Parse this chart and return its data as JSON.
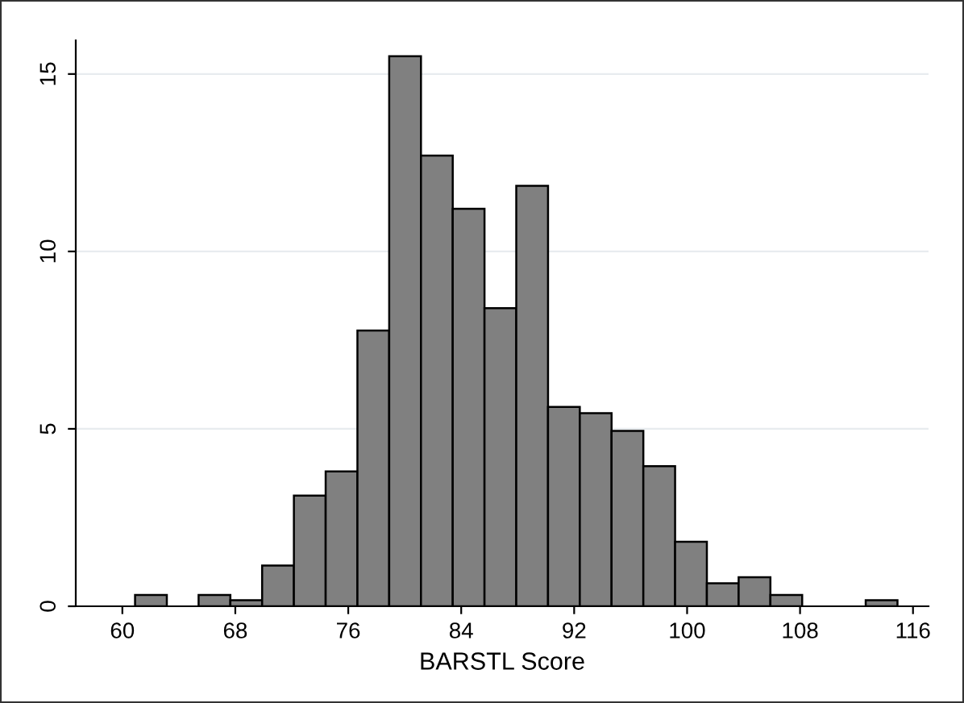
{
  "chart_data": {
    "type": "histogram",
    "xlabel": "BARSTL Score",
    "bins": [
      60.9,
      63.15,
      65.4,
      67.65,
      69.9,
      72.15,
      74.4,
      76.65,
      78.9,
      81.15,
      83.4,
      85.65,
      87.9,
      90.15,
      92.4,
      94.65,
      96.9,
      99.15,
      101.4,
      103.65,
      105.9,
      108.15,
      110.4,
      112.65,
      114.9
    ],
    "values": [
      0.32,
      0,
      0.32,
      0.17,
      1.15,
      3.12,
      3.8,
      7.77,
      15.5,
      12.7,
      11.2,
      8.4,
      11.85,
      5.62,
      5.44,
      4.94,
      3.95,
      1.82,
      0.65,
      0.82,
      0.32,
      0,
      0,
      0.17
    ],
    "color": "#808080",
    "xlim": [
      56.7,
      117.1
    ],
    "xticks": [
      60,
      68,
      76,
      84,
      92,
      100,
      108,
      116
    ],
    "ylim": [
      0,
      15.95
    ],
    "yticks": [
      0,
      5,
      10,
      15
    ],
    "grid": "y",
    "legend": false
  }
}
